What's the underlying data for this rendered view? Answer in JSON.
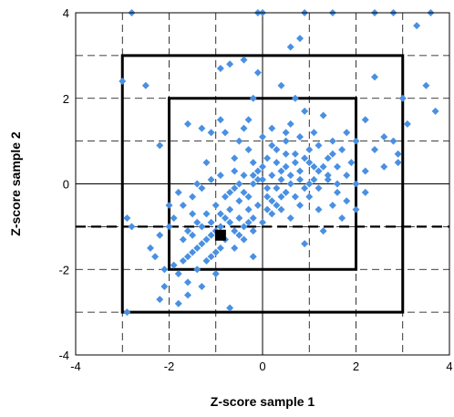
{
  "chart_data": {
    "type": "scatter",
    "xlabel": "Z-score sample 1",
    "ylabel": "Z-score sample 2",
    "xlim": [
      -4,
      4
    ],
    "ylim": [
      -4,
      4
    ],
    "xticks": [
      "-4",
      "-2",
      "0",
      "2",
      "4"
    ],
    "yticks": [
      "-4",
      "-2",
      "0",
      "2",
      "4"
    ],
    "grid": true,
    "point_color": "#4A90E2",
    "boxes": [
      {
        "name": "box-3sd",
        "x": [
          -3,
          3
        ],
        "y": [
          -3,
          3
        ]
      },
      {
        "name": "box-2sd",
        "x": [
          -2,
          2
        ],
        "y": [
          -2,
          2
        ]
      }
    ],
    "reference_line": {
      "y": -1
    },
    "highlight_point": {
      "x": -0.9,
      "y": -1.2
    },
    "points": [
      [
        -2.8,
        4
      ],
      [
        -0.1,
        4
      ],
      [
        0,
        4
      ],
      [
        0.9,
        4
      ],
      [
        1.5,
        4
      ],
      [
        2.4,
        4
      ],
      [
        2.8,
        4
      ],
      [
        3.6,
        4
      ],
      [
        3.3,
        3.7
      ],
      [
        0.8,
        3.4
      ],
      [
        0.6,
        3.2
      ],
      [
        -0.4,
        2.9
      ],
      [
        -0.7,
        2.8
      ],
      [
        -0.9,
        2.7
      ],
      [
        -0.1,
        2.6
      ],
      [
        -3.0,
        2.4
      ],
      [
        -2.5,
        2.3
      ],
      [
        0.4,
        2.3
      ],
      [
        2.4,
        2.5
      ],
      [
        3.5,
        2.3
      ],
      [
        -0.2,
        2.0
      ],
      [
        0.7,
        2.0
      ],
      [
        3.0,
        2.0
      ],
      [
        3.7,
        1.7
      ],
      [
        3.1,
        1.4
      ],
      [
        2.6,
        1.1
      ],
      [
        -1.6,
        1.4
      ],
      [
        -0.9,
        1.5
      ],
      [
        -0.4,
        1.3
      ],
      [
        2.2,
        1.5
      ],
      [
        -2.2,
        0.9
      ],
      [
        -1.3,
        1.3
      ],
      [
        -1.1,
        1.2
      ],
      [
        1.8,
        1.2
      ],
      [
        2.0,
        1.0
      ],
      [
        2.8,
        1.0
      ],
      [
        2.9,
        0.7
      ],
      [
        2.4,
        0.8
      ],
      [
        2.9,
        0.5
      ],
      [
        2.6,
        0.4
      ],
      [
        -0.8,
        1.2
      ],
      [
        -0.5,
        1.0
      ],
      [
        -0.3,
        0.8
      ],
      [
        0.2,
        0.9
      ],
      [
        0.5,
        1.0
      ],
      [
        0.8,
        1.1
      ],
      [
        1.0,
        0.8
      ],
      [
        1.2,
        0.9
      ],
      [
        1.4,
        0.6
      ],
      [
        1.6,
        0.4
      ],
      [
        1.1,
        0.4
      ],
      [
        0.9,
        0.6
      ],
      [
        0.7,
        0.5
      ],
      [
        0.5,
        0.7
      ],
      [
        0.3,
        0.5
      ],
      [
        0.1,
        0.6
      ],
      [
        -0.1,
        0.3
      ],
      [
        -0.2,
        0.5
      ],
      [
        -0.4,
        0.2
      ],
      [
        -0.6,
        0.3
      ],
      [
        -0.9,
        0.2
      ],
      [
        -1.1,
        0.1
      ],
      [
        -1.3,
        -0.1
      ],
      [
        -1.5,
        -0.3
      ],
      [
        -1.7,
        -0.5
      ],
      [
        -1.9,
        -0.8
      ],
      [
        -2.0,
        -1.0
      ],
      [
        -1.6,
        -1.1
      ],
      [
        -1.4,
        -0.9
      ],
      [
        -1.2,
        -0.7
      ],
      [
        -1.0,
        -0.5
      ],
      [
        -0.8,
        -0.3
      ],
      [
        -0.6,
        -0.1
      ],
      [
        -0.4,
        -0.2
      ],
      [
        -0.2,
        0.0
      ],
      [
        0.0,
        0.1
      ],
      [
        0.2,
        0.2
      ],
      [
        0.4,
        0.3
      ],
      [
        0.6,
        0.2
      ],
      [
        0.8,
        0.1
      ],
      [
        1.0,
        0.0
      ],
      [
        1.2,
        -0.1
      ],
      [
        1.4,
        0.1
      ],
      [
        1.6,
        -0.2
      ],
      [
        1.8,
        -0.4
      ],
      [
        2.0,
        0.0
      ],
      [
        1.5,
        -0.5
      ],
      [
        1.2,
        -0.6
      ],
      [
        1.0,
        -0.3
      ],
      [
        0.8,
        -0.5
      ],
      [
        0.5,
        -0.2
      ],
      [
        0.3,
        -0.1
      ],
      [
        0.1,
        -0.3
      ],
      [
        -0.1,
        -0.5
      ],
      [
        -0.3,
        -0.6
      ],
      [
        -0.5,
        -0.8
      ],
      [
        -0.7,
        -0.9
      ],
      [
        -0.9,
        -1.0
      ],
      [
        -1.1,
        -1.2
      ],
      [
        -1.3,
        -1.4
      ],
      [
        -1.5,
        -1.6
      ],
      [
        -1.7,
        -1.8
      ],
      [
        -1.9,
        -1.9
      ],
      [
        -2.1,
        -2.0
      ],
      [
        -2.3,
        -1.7
      ],
      [
        -1.8,
        -2.1
      ],
      [
        -1.6,
        -2.3
      ],
      [
        -1.4,
        -2.0
      ],
      [
        -1.2,
        -1.8
      ],
      [
        -1.0,
        -1.6
      ],
      [
        -0.6,
        -1.5
      ],
      [
        -0.4,
        -1.3
      ],
      [
        -0.2,
        -1.1
      ],
      [
        0.0,
        -0.9
      ],
      [
        0.2,
        -0.7
      ],
      [
        0.4,
        -0.6
      ],
      [
        0.6,
        -0.8
      ],
      [
        -0.7,
        -2.9
      ],
      [
        -2.9,
        -3.0
      ],
      [
        -2.1,
        -2.4
      ],
      [
        -1.6,
        -2.6
      ],
      [
        -2.4,
        -1.5
      ],
      [
        -2.8,
        -1.0
      ],
      [
        -2.9,
        -0.8
      ],
      [
        -2.0,
        -0.5
      ],
      [
        -1.8,
        -0.2
      ],
      [
        -0.3,
        1.5
      ],
      [
        0.2,
        1.3
      ],
      [
        0.6,
        1.4
      ],
      [
        1.3,
        1.6
      ],
      [
        0.9,
        1.7
      ],
      [
        0.0,
        1.1
      ],
      [
        1.1,
        1.2
      ],
      [
        1.5,
        1.0
      ],
      [
        1.7,
        0.8
      ],
      [
        0.4,
        0.1
      ],
      [
        0.1,
        -0.1
      ],
      [
        -0.1,
        0.1
      ],
      [
        -0.3,
        -0.3
      ],
      [
        -0.5,
        -0.4
      ],
      [
        -0.7,
        -0.6
      ],
      [
        -0.9,
        -0.7
      ],
      [
        -1.1,
        -0.9
      ],
      [
        -1.3,
        -1.0
      ],
      [
        -1.5,
        -1.2
      ],
      [
        -1.7,
        -1.3
      ],
      [
        -0.8,
        -1.3
      ],
      [
        -0.6,
        -1.1
      ],
      [
        -0.4,
        -1.0
      ],
      [
        0.2,
        -0.4
      ],
      [
        0.4,
        -0.3
      ],
      [
        0.6,
        0.0
      ],
      [
        0.8,
        0.3
      ],
      [
        1.0,
        0.5
      ],
      [
        1.2,
        0.3
      ],
      [
        1.4,
        0.2
      ],
      [
        1.6,
        0.0
      ],
      [
        1.8,
        0.2
      ],
      [
        2.2,
        -0.2
      ],
      [
        2.0,
        -0.6
      ],
      [
        1.7,
        -0.8
      ],
      [
        1.3,
        -1.1
      ],
      [
        0.9,
        -1.4
      ],
      [
        -0.2,
        -1.7
      ],
      [
        -1.0,
        -2.1
      ],
      [
        -1.3,
        -2.4
      ],
      [
        -1.8,
        -2.8
      ],
      [
        -2.2,
        -2.7
      ],
      [
        2.2,
        0.3
      ],
      [
        1.9,
        0.5
      ],
      [
        0.3,
        0.8
      ],
      [
        0.5,
        0.4
      ],
      [
        0.7,
        0.7
      ],
      [
        0.0,
        0.4
      ],
      [
        -0.2,
        0.2
      ],
      [
        -0.5,
        0.0
      ],
      [
        -0.7,
        -0.2
      ],
      [
        -0.2,
        -0.8
      ],
      [
        0.1,
        -0.6
      ],
      [
        0.3,
        -0.5
      ],
      [
        -0.8,
        -0.8
      ],
      [
        -1.0,
        -1.1
      ],
      [
        -1.2,
        -1.3
      ],
      [
        -1.4,
        -1.5
      ],
      [
        -1.6,
        -1.7
      ],
      [
        -1.1,
        -1.7
      ],
      [
        -0.9,
        -1.5
      ],
      [
        -0.5,
        -1.2
      ],
      [
        -0.3,
        -0.9
      ],
      [
        0.7,
        -0.3
      ],
      [
        0.9,
        -0.1
      ],
      [
        1.1,
        0.1
      ],
      [
        1.3,
        0.4
      ],
      [
        1.5,
        0.7
      ],
      [
        0.5,
        1.2
      ],
      [
        -0.6,
        0.6
      ],
      [
        -1.2,
        0.5
      ],
      [
        -1.4,
        0.0
      ],
      [
        -2.2,
        -1.2
      ],
      [
        -1.5,
        -0.7
      ]
    ]
  }
}
